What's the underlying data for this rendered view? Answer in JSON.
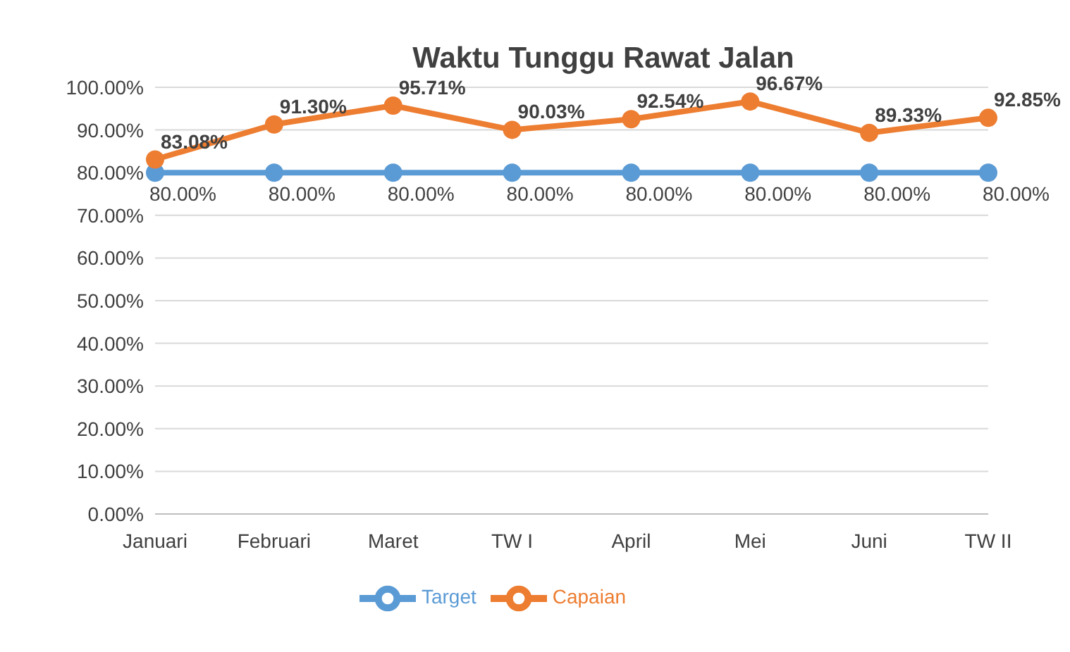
{
  "chart_data": {
    "type": "line",
    "title": "Waktu Tunggu Rawat Jalan",
    "categories": [
      "Januari",
      "Februari",
      "Maret",
      "TW I",
      "April",
      "Mei",
      "Juni",
      "TW II"
    ],
    "series": [
      {
        "name": "Target",
        "color": "#5b9bd5",
        "values": [
          80,
          80,
          80,
          80,
          80,
          80,
          80,
          80
        ],
        "value_labels": [
          "80.00%",
          "80.00%",
          "80.00%",
          "80.00%",
          "80.00%",
          "80.00%",
          "80.00%",
          "80.00%"
        ]
      },
      {
        "name": "Capaian",
        "color": "#ed7d31",
        "values": [
          83.08,
          91.3,
          95.71,
          90.03,
          92.54,
          96.67,
          89.33,
          92.85
        ],
        "value_labels": [
          "83.08%",
          "91.30%",
          "95.71%",
          "90.03%",
          "92.54%",
          "96.67%",
          "89.33%",
          "92.85%"
        ]
      }
    ],
    "ylim": [
      0,
      100
    ],
    "yticks": [
      {
        "value": 0,
        "label": "0.00%"
      },
      {
        "value": 10,
        "label": "10.00%"
      },
      {
        "value": 20,
        "label": "20.00%"
      },
      {
        "value": 30,
        "label": "30.00%"
      },
      {
        "value": 40,
        "label": "40.00%"
      },
      {
        "value": 50,
        "label": "50.00%"
      },
      {
        "value": 60,
        "label": "60.00%"
      },
      {
        "value": 70,
        "label": "70.00%"
      },
      {
        "value": 80,
        "label": "80.00%"
      },
      {
        "value": 90,
        "label": "90.00%"
      },
      {
        "value": 100,
        "label": "100.00%"
      }
    ],
    "grid": "y",
    "legend": "bottom",
    "marker": "circle",
    "line_style": "solid"
  }
}
